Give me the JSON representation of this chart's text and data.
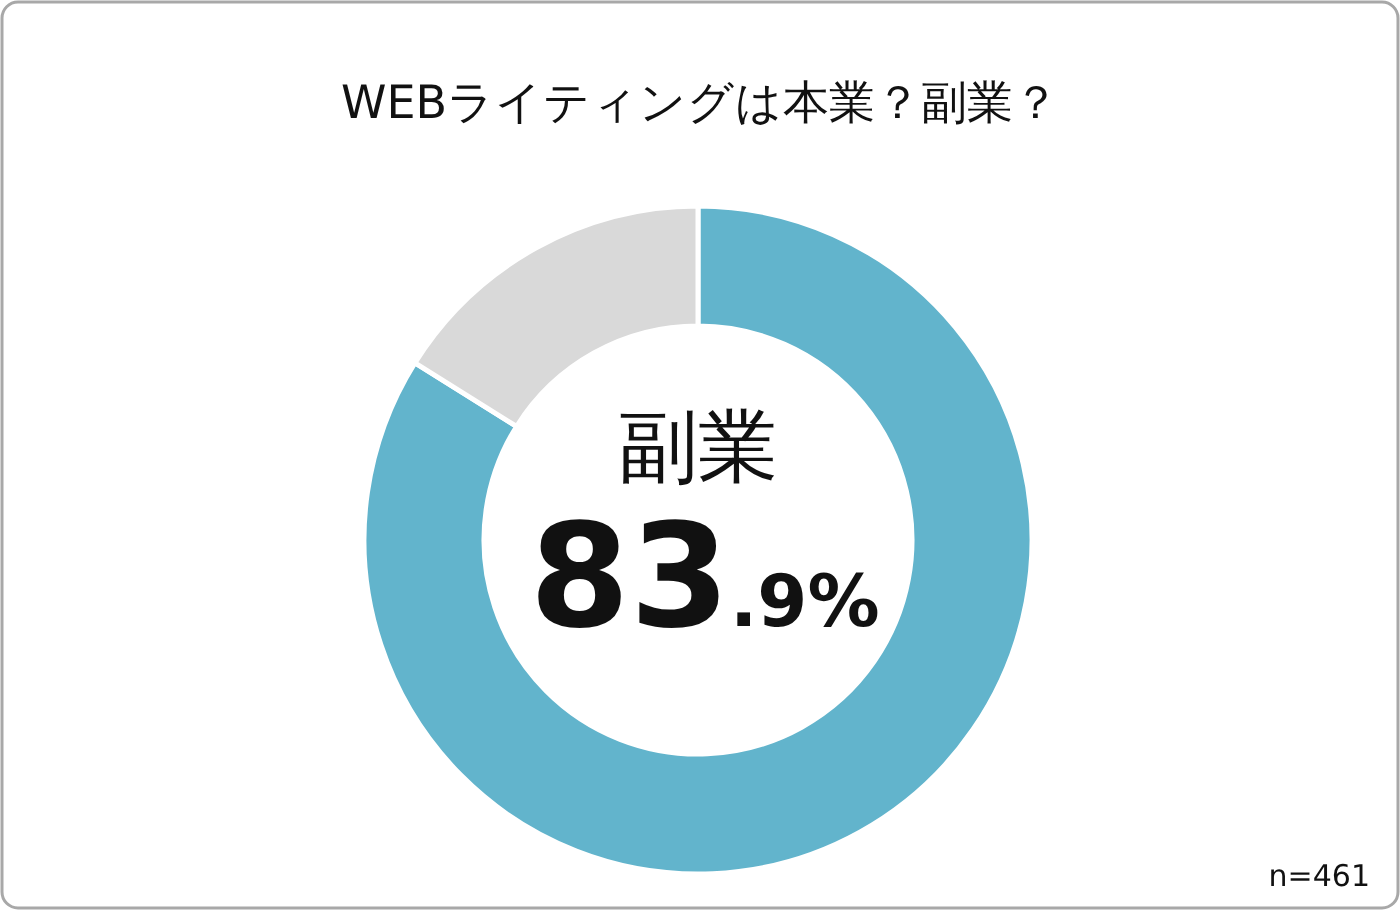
{
  "chart_data": {
    "type": "donut",
    "title": "WEBライティングは本業？副業？",
    "categories": [
      "副業",
      null
    ],
    "values": [
      83.9,
      16.1
    ],
    "colors": [
      "#62b4cc",
      "#d9d9d9"
    ],
    "value_labels": [
      "83.9%",
      null
    ],
    "annotations": [
      "n=461"
    ]
  }
}
